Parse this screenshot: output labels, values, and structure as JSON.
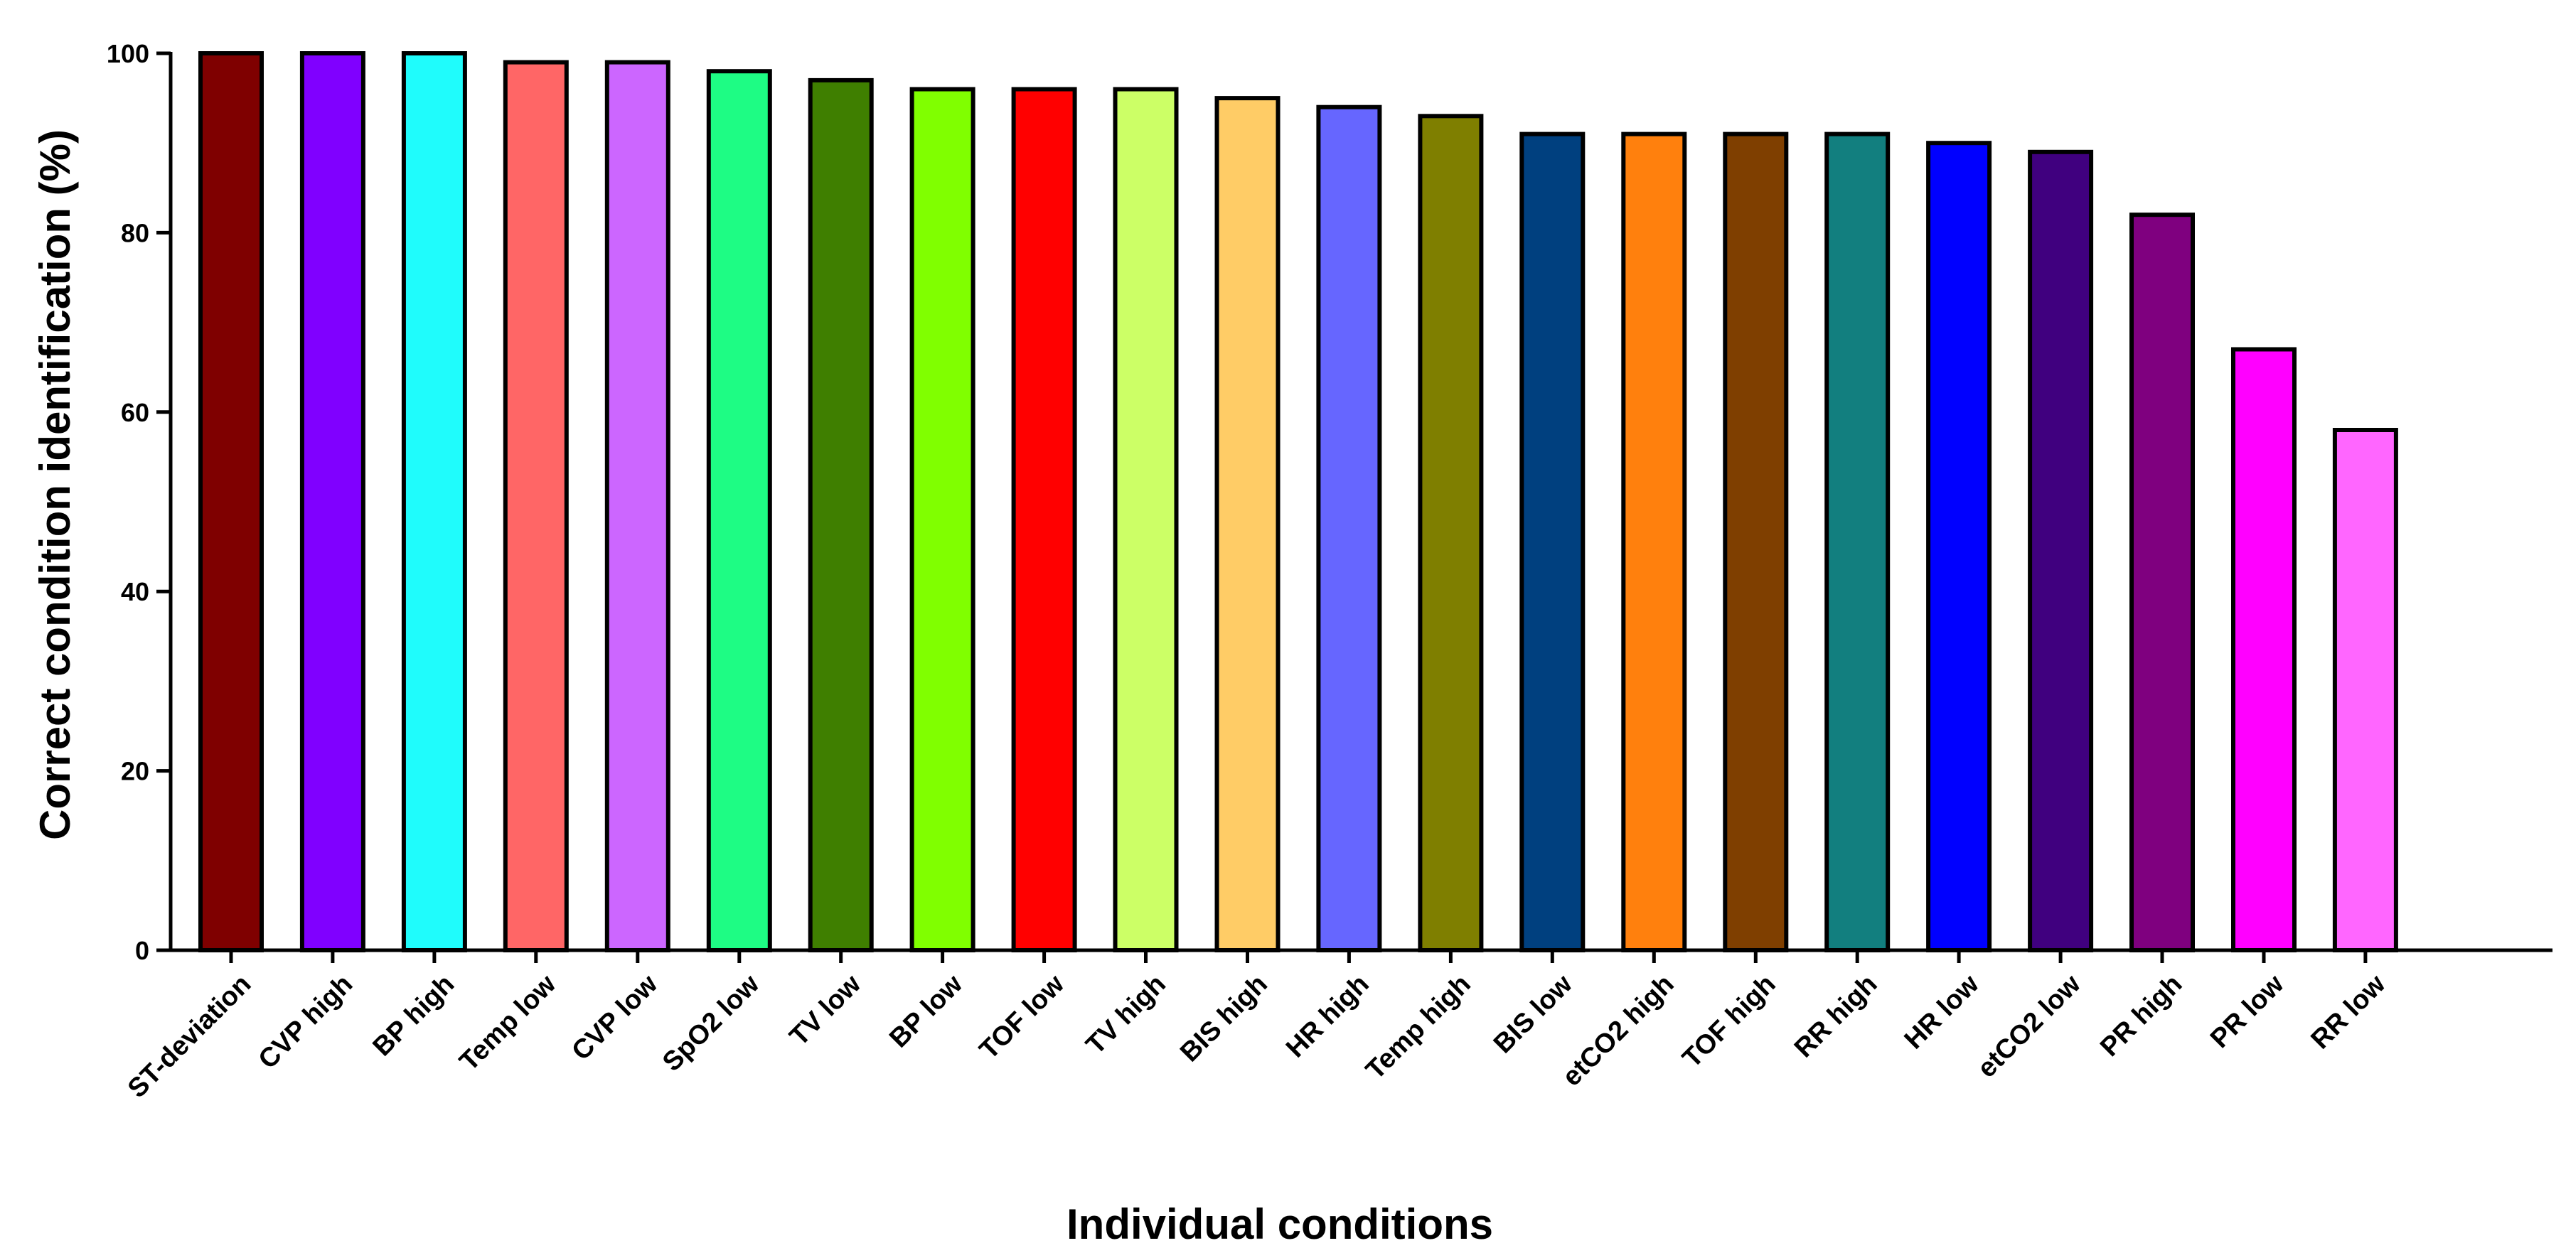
{
  "chart_data": {
    "type": "bar",
    "title": "",
    "xlabel": "Individual conditions",
    "ylabel": "Correct condition identification (%)",
    "ylim": [
      0,
      100
    ],
    "yticks": [
      0,
      20,
      40,
      60,
      80,
      100
    ],
    "grid": false,
    "categories": [
      "ST-deviation",
      "CVP high",
      "BP high",
      "Temp low",
      "CVP low",
      "SpO2 low",
      "TV low",
      "BP low",
      "TOF low",
      "TV high",
      "BIS high",
      "HR high",
      "Temp high",
      "BIS low",
      "etCO2 high",
      "TOF high",
      "RR high",
      "HR low",
      "etCO2 low",
      "PR high",
      "PR low",
      "RR low"
    ],
    "values": [
      100,
      100,
      100,
      99,
      99,
      98,
      97,
      96,
      96,
      96,
      95,
      94,
      93,
      91,
      91,
      91,
      91,
      90,
      89,
      82,
      67,
      58
    ],
    "colors": [
      "#7f0000",
      "#8000ff",
      "#1ffcfc",
      "#ff6666",
      "#cc66ff",
      "#1efc84",
      "#3f7f00",
      "#80ff00",
      "#ff0000",
      "#ccff66",
      "#ffcc66",
      "#6666ff",
      "#7f7f00",
      "#00407f",
      "#ff800d",
      "#7f3f00",
      "#127f7f",
      "#0000ff",
      "#40007f",
      "#7f007f",
      "#ff00ff",
      "#ff66ff"
    ]
  }
}
